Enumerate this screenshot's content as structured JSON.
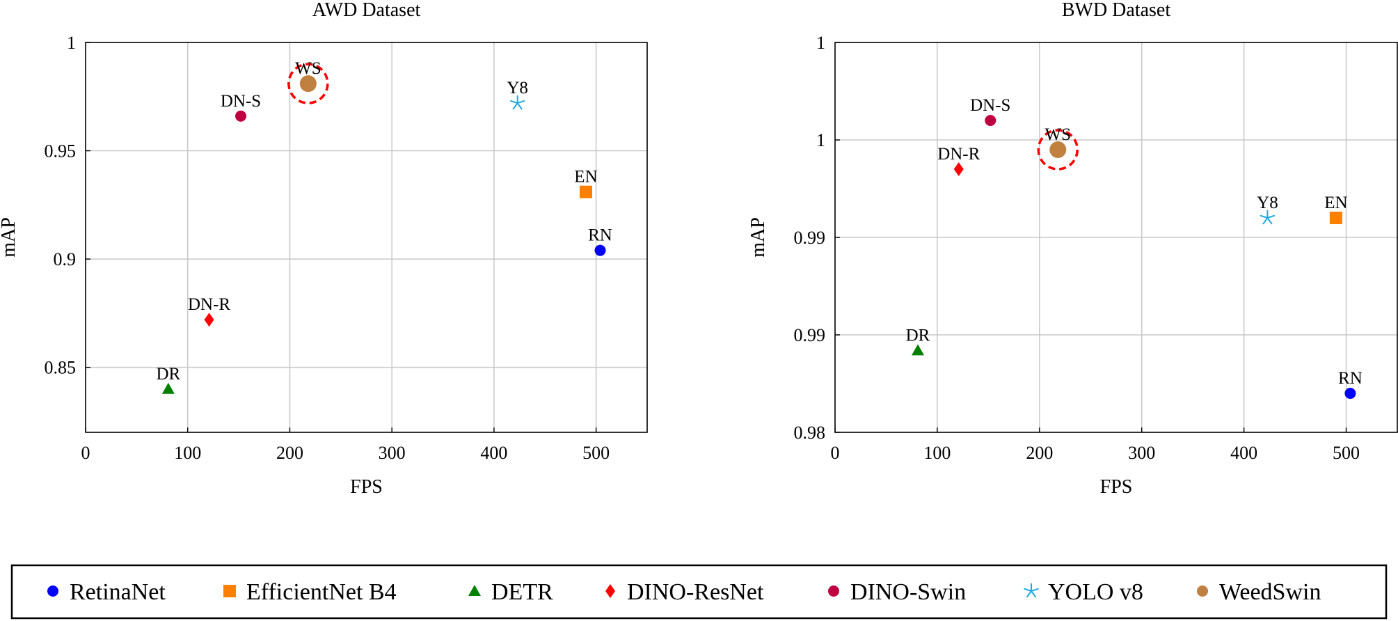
{
  "chart_data": [
    {
      "type": "scatter",
      "title": "AWD Dataset",
      "xlabel": "FPS",
      "ylabel": "mAP",
      "xlim": [
        0,
        550
      ],
      "ylim": [
        0.82,
        1.0
      ],
      "xticks": [
        0,
        100,
        200,
        300,
        400,
        500
      ],
      "xtick_labels": [
        "0",
        "100",
        "200",
        "300",
        "400",
        "500"
      ],
      "yticks": [
        0.85,
        0.9,
        0.95,
        1.0
      ],
      "ytick_labels": [
        "0.85",
        "0.9",
        "0.95",
        "1"
      ],
      "grid": true,
      "points": [
        {
          "model": "RetinaNet",
          "label": "RN",
          "x": 504,
          "y": 0.904
        },
        {
          "model": "EfficientNet B4",
          "label": "EN",
          "x": 490,
          "y": 0.931
        },
        {
          "model": "DETR",
          "label": "DR",
          "x": 81,
          "y": 0.84
        },
        {
          "model": "DINO-ResNet",
          "label": "DN-R",
          "x": 121,
          "y": 0.872
        },
        {
          "model": "DINO-Swin",
          "label": "DN-S",
          "x": 152,
          "y": 0.966
        },
        {
          "model": "YOLO v8",
          "label": "Y8",
          "x": 423,
          "y": 0.972
        },
        {
          "model": "WeedSwin",
          "label": "WS",
          "x": 218,
          "y": 0.981,
          "highlight": true
        }
      ]
    },
    {
      "type": "scatter",
      "title": "BWD Dataset",
      "xlabel": "FPS",
      "ylabel": "mAP",
      "xlim": [
        0,
        550
      ],
      "ylim": [
        0.98,
        1.0
      ],
      "xticks": [
        0,
        100,
        200,
        300,
        400,
        500
      ],
      "xtick_labels": [
        "0",
        "100",
        "200",
        "300",
        "400",
        "500"
      ],
      "yticks": [
        0.98,
        0.985,
        0.99,
        0.995,
        1.0
      ],
      "ytick_labels": [
        "0.98",
        "0.99",
        "0.99",
        "1",
        "1"
      ],
      "grid": true,
      "points": [
        {
          "model": "RetinaNet",
          "label": "RN",
          "x": 504,
          "y": 0.982
        },
        {
          "model": "EfficientNet B4",
          "label": "EN",
          "x": 490,
          "y": 0.991
        },
        {
          "model": "DETR",
          "label": "DR",
          "x": 81,
          "y": 0.9842
        },
        {
          "model": "DINO-ResNet",
          "label": "DN-R",
          "x": 121,
          "y": 0.9935
        },
        {
          "model": "DINO-Swin",
          "label": "DN-S",
          "x": 152,
          "y": 0.996
        },
        {
          "model": "YOLO v8",
          "label": "Y8",
          "x": 423,
          "y": 0.991
        },
        {
          "model": "WeedSwin",
          "label": "WS",
          "x": 218,
          "y": 0.9945,
          "highlight": true
        }
      ]
    }
  ],
  "legend": [
    {
      "name": "RetinaNet",
      "marker": "circle",
      "color": "#0000ff"
    },
    {
      "name": "EfficientNet B4",
      "marker": "square",
      "color": "#ff7f00"
    },
    {
      "name": "DETR",
      "marker": "triangle",
      "color": "#008000"
    },
    {
      "name": "DINO-ResNet",
      "marker": "diamond",
      "color": "#ff0000"
    },
    {
      "name": "DINO-Swin",
      "marker": "circle",
      "color": "#bf0040"
    },
    {
      "name": "YOLO v8",
      "marker": "star",
      "color": "#1fa8e0"
    },
    {
      "name": "WeedSwin",
      "marker": "circle-large",
      "color": "#bf8040"
    }
  ],
  "highlight_color": "#ff0000"
}
